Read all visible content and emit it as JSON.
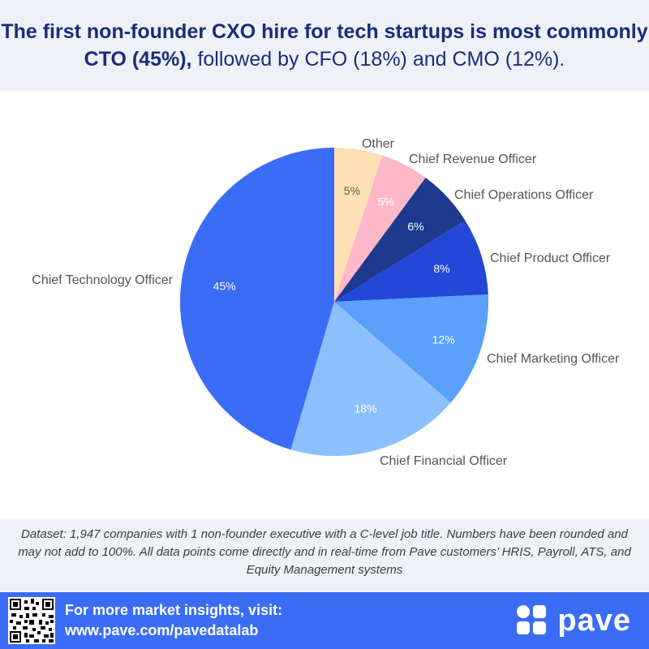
{
  "header": {
    "title_bold": "The first non-founder CXO hire for tech startups is most commonly CTO (45%),",
    "title_rest": " followed by CFO (18%) and CMO (12%)."
  },
  "chart_data": {
    "type": "pie",
    "start": "12 o'clock, clockwise",
    "slices": [
      {
        "label": "Other",
        "value": 5,
        "display": "5%",
        "color": "#fde1b4",
        "text_color": "#555555"
      },
      {
        "label": "Chief Revenue Officer",
        "value": 5,
        "display": "5%",
        "color": "#fcb8c9",
        "text_color": "#ffffff"
      },
      {
        "label": "Chief Operations Officer",
        "value": 6,
        "display": "6%",
        "color": "#1d3a8f",
        "text_color": "#ffffff"
      },
      {
        "label": "Chief Product Officer",
        "value": 8,
        "display": "8%",
        "color": "#2347d6",
        "text_color": "#ffffff"
      },
      {
        "label": "Chief Marketing Officer",
        "value": 12,
        "display": "12%",
        "color": "#5aa0fc",
        "text_color": "#ffffff"
      },
      {
        "label": "Chief Financial Officer",
        "value": 18,
        "display": "18%",
        "color": "#8cc0fd",
        "text_color": "#ffffff"
      },
      {
        "label": "Chief Technology Officer",
        "value": 45,
        "display": "45%",
        "color": "#3b6cf6",
        "text_color": "#ffffff"
      }
    ]
  },
  "footnote": {
    "text": "Dataset: 1,947 companies with 1 non-founder executive with a C-level job title. Numbers have been rounded and may not add to 100%. All data points come directly and in real-time from Pave customers’ HRIS, Payroll, ATS, and Equity Management systems"
  },
  "footer": {
    "line1": "For more market insights, visit:",
    "line2": "www.pave.com/pavedatalab",
    "brand": "pave",
    "qr_icon": "qr-code-icon",
    "logo_icon": "pave-logo-icon",
    "bg_color": "#3b6cf6"
  }
}
